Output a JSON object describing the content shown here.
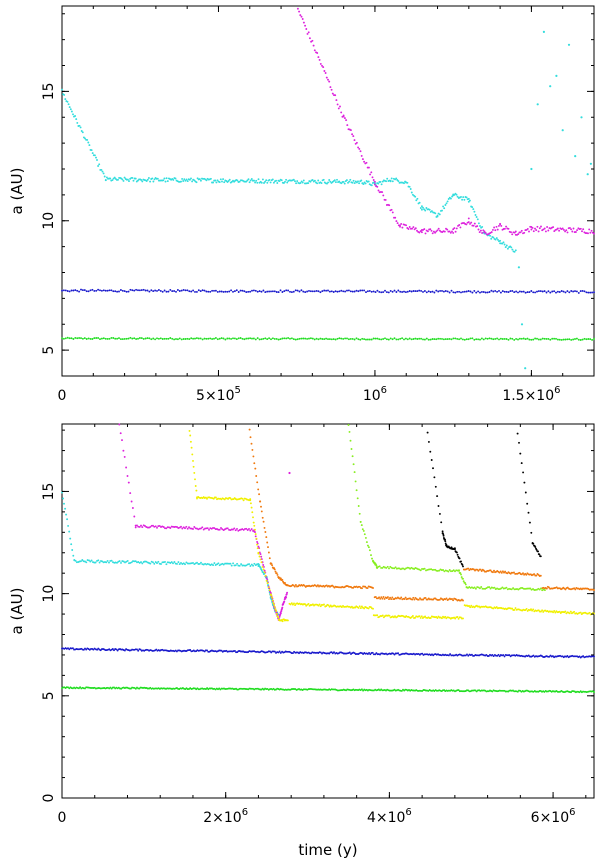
{
  "chart_data": [
    {
      "type": "scatter",
      "panel": "top",
      "title": "",
      "xlabel": "",
      "ylabel": "a (AU)",
      "xlim": [
        0,
        1700000
      ],
      "ylim": [
        4,
        18.3
      ],
      "grid": false,
      "x_ticks": [
        {
          "value": 0,
          "base": "0",
          "exp": ""
        },
        {
          "value": 500000,
          "base": "5×10",
          "exp": "5"
        },
        {
          "value": 1000000,
          "base": "10",
          "exp": "6"
        },
        {
          "value": 1500000,
          "base": "1.5×10",
          "exp": "6"
        }
      ],
      "y_ticks": [
        {
          "value": 5,
          "label": "5"
        },
        {
          "value": 10,
          "label": "10"
        },
        {
          "value": 15,
          "label": "15"
        }
      ],
      "series": [
        {
          "name": "green",
          "color": "#22dd22",
          "scatter_pts": 140,
          "noise": 0.03,
          "segments": [
            [
              [
                0,
                5.45
              ],
              [
                1700000,
                5.42
              ]
            ]
          ]
        },
        {
          "name": "blue",
          "color": "#1a1acc",
          "scatter_pts": 140,
          "noise": 0.04,
          "segments": [
            [
              [
                0,
                7.3
              ],
              [
                1700000,
                7.25
              ]
            ]
          ]
        },
        {
          "name": "cyan",
          "color": "#33dddd",
          "scatter_pts": 240,
          "noise": 0.08,
          "segments": [
            [
              [
                0,
                15.0
              ],
              [
                140000,
                11.6
              ],
              [
                960000,
                11.5
              ],
              [
                1000000,
                11.4
              ],
              [
                1050000,
                11.6
              ],
              [
                1100000,
                11.5
              ],
              [
                1150000,
                10.5
              ],
              [
                1200000,
                10.2
              ],
              [
                1250000,
                11.0
              ],
              [
                1300000,
                10.8
              ],
              [
                1350000,
                9.5
              ],
              [
                1400000,
                9.2
              ],
              [
                1450000,
                8.8
              ]
            ]
          ],
          "extra_points": [
            [
              1460000,
              8.2
            ],
            [
              1470000,
              6.0
            ],
            [
              1480000,
              4.3
            ],
            [
              1500000,
              12.0
            ],
            [
              1520000,
              14.5
            ],
            [
              1540000,
              17.3
            ],
            [
              1560000,
              15.2
            ],
            [
              1580000,
              15.6
            ],
            [
              1600000,
              13.5
            ],
            [
              1620000,
              16.8
            ],
            [
              1640000,
              12.5
            ],
            [
              1660000,
              14.0
            ],
            [
              1680000,
              11.8
            ],
            [
              1690000,
              12.2
            ]
          ]
        },
        {
          "name": "magenta",
          "color": "#dd22dd",
          "scatter_pts": 220,
          "noise": 0.1,
          "segments": [
            [
              [
                750000,
                18.3
              ],
              [
                900000,
                14.0
              ],
              [
                1000000,
                11.5
              ],
              [
                1080000,
                9.8
              ],
              [
                1150000,
                9.6
              ],
              [
                1250000,
                9.6
              ],
              [
                1300000,
                10.0
              ],
              [
                1350000,
                9.5
              ],
              [
                1400000,
                9.8
              ],
              [
                1450000,
                9.5
              ],
              [
                1500000,
                9.7
              ],
              [
                1700000,
                9.6
              ]
            ]
          ]
        }
      ]
    },
    {
      "type": "scatter",
      "panel": "bottom",
      "title": "",
      "xlabel": "time (y)",
      "ylabel": "a (AU)",
      "xlim": [
        0,
        6500000
      ],
      "ylim": [
        0,
        18.3
      ],
      "grid": false,
      "x_ticks": [
        {
          "value": 0,
          "base": "0",
          "exp": ""
        },
        {
          "value": 2000000,
          "base": "2×10",
          "exp": "6"
        },
        {
          "value": 4000000,
          "base": "4×10",
          "exp": "6"
        },
        {
          "value": 6000000,
          "base": "6×10",
          "exp": "6"
        }
      ],
      "y_ticks": [
        {
          "value": 0,
          "label": "0"
        },
        {
          "value": 5,
          "label": "5"
        },
        {
          "value": 10,
          "label": "10"
        },
        {
          "value": 15,
          "label": "15"
        }
      ],
      "series": [
        {
          "name": "green",
          "color": "#22dd22",
          "scatter_pts": 220,
          "noise": 0.03,
          "segments": [
            [
              [
                0,
                5.4
              ],
              [
                6500000,
                5.2
              ]
            ]
          ]
        },
        {
          "name": "blue",
          "color": "#1a1acc",
          "scatter_pts": 220,
          "noise": 0.04,
          "segments": [
            [
              [
                0,
                7.3
              ],
              [
                6500000,
                6.9
              ]
            ]
          ]
        },
        {
          "name": "cyan",
          "color": "#33dddd",
          "scatter_pts": 200,
          "noise": 0.06,
          "segments": [
            [
              [
                0,
                15.0
              ],
              [
                150000,
                11.6
              ],
              [
                2400000,
                11.4
              ],
              [
                2500000,
                10.8
              ],
              [
                2550000,
                9.8
              ],
              [
                2600000,
                9.2
              ],
              [
                2650000,
                8.9
              ]
            ]
          ]
        },
        {
          "name": "magenta",
          "color": "#dd22dd",
          "scatter_pts": 200,
          "noise": 0.06,
          "segments": [
            [
              [
                700000,
                18.3
              ],
              [
                900000,
                13.3
              ],
              [
                2350000,
                13.1
              ],
              [
                2450000,
                11.5
              ],
              [
                2550000,
                10.0
              ],
              [
                2600000,
                9.3
              ],
              [
                2650000,
                8.7
              ],
              [
                2700000,
                9.5
              ],
              [
                2750000,
                10.0
              ]
            ]
          ],
          "extra_points": [
            [
              2780000,
              15.9
            ]
          ]
        },
        {
          "name": "yellow",
          "color": "#f0f000",
          "scatter_pts": 240,
          "noise": 0.05,
          "segments": [
            [
              [
                1550000,
                18.3
              ],
              [
                1650000,
                14.7
              ],
              [
                2300000,
                14.6
              ],
              [
                2400000,
                12.0
              ],
              [
                2550000,
                10.0
              ],
              [
                2650000,
                8.7
              ],
              [
                2760000,
                8.7
              ]
            ],
            [
              [
                2780000,
                9.5
              ],
              [
                3800000,
                9.3
              ]
            ],
            [
              [
                3810000,
                8.9
              ],
              [
                4900000,
                8.8
              ]
            ],
            [
              [
                4920000,
                9.4
              ],
              [
                6500000,
                9.0
              ]
            ]
          ]
        },
        {
          "name": "orange",
          "color": "#f07a10",
          "scatter_pts": 240,
          "noise": 0.05,
          "segments": [
            [
              [
                2280000,
                18.3
              ],
              [
                2420000,
                14.5
              ],
              [
                2550000,
                11.5
              ],
              [
                2650000,
                10.8
              ],
              [
                2750000,
                10.4
              ],
              [
                3800000,
                10.3
              ]
            ],
            [
              [
                3820000,
                9.8
              ],
              [
                4900000,
                9.7
              ]
            ],
            [
              [
                4910000,
                11.2
              ],
              [
                5850000,
                10.9
              ]
            ],
            [
              [
                5870000,
                10.3
              ],
              [
                6500000,
                10.2
              ]
            ]
          ]
        },
        {
          "name": "lime",
          "color": "#88ee22",
          "scatter_pts": 200,
          "noise": 0.05,
          "segments": [
            [
              [
                3500000,
                18.3
              ],
              [
                3650000,
                13.5
              ],
              [
                3800000,
                11.6
              ],
              [
                3850000,
                11.3
              ],
              [
                4850000,
                11.1
              ],
              [
                4950000,
                10.3
              ]
            ],
            [
              [
                4960000,
                10.3
              ],
              [
                5900000,
                10.2
              ]
            ]
          ]
        },
        {
          "name": "black",
          "color": "#000000",
          "scatter_pts": 160,
          "noise": 0.05,
          "segments": [
            [
              [
                4450000,
                18.3
              ],
              [
                4650000,
                13.0
              ],
              [
                4700000,
                12.3
              ],
              [
                4800000,
                12.2
              ],
              [
                4900000,
                11.3
              ]
            ],
            [
              [
                5550000,
                18.3
              ],
              [
                5750000,
                12.5
              ],
              [
                5850000,
                11.8
              ]
            ]
          ]
        }
      ]
    }
  ]
}
